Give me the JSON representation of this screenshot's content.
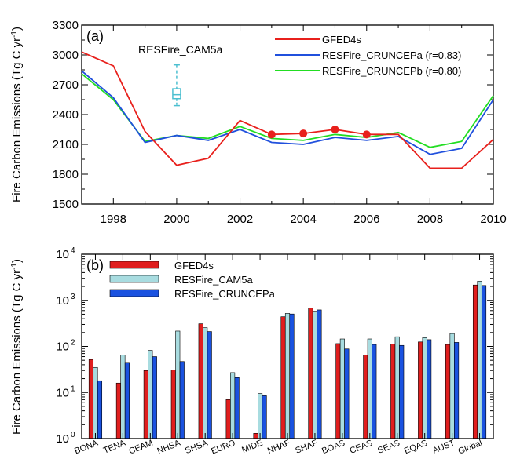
{
  "figure": {
    "panel_a": {
      "label": "(a)",
      "ylabel": "Fire Carbon Emissions (Tg C yr",
      "ylabel_sup": "-1",
      "ylabel_close": ")",
      "box_label": "RESFire_CAM5a"
    },
    "panel_b": {
      "label": "(b)",
      "ylabel": "Fire Carbon Emissions (Tg C yr",
      "ylabel_sup": "-1",
      "ylabel_close": ")"
    }
  },
  "chart_data": [
    {
      "type": "line",
      "xlim": [
        1997,
        2010
      ],
      "ylim": [
        1500,
        3300
      ],
      "x_ticks": [
        1998,
        2000,
        2002,
        2004,
        2006,
        2008,
        2010
      ],
      "y_ticks": [
        1500,
        1800,
        2100,
        2400,
        2700,
        3000,
        3300
      ],
      "grid": false,
      "legend_position": "top-right",
      "colors": {
        "GFED4s": "#e8201c",
        "RESFire_CRUNCEPa": "#2050dd",
        "RESFire_CRUNCEPb": "#22dd22",
        "box": "#4cbfd0"
      },
      "series": [
        {
          "name": "GFED4s",
          "x": [
            1997,
            1998,
            1999,
            2000,
            2001,
            2002,
            2003,
            2004,
            2005,
            2006,
            2007,
            2008,
            2009,
            2010
          ],
          "values": [
            3030,
            2890,
            2230,
            1890,
            1960,
            2340,
            2200,
            2210,
            2250,
            2200,
            2200,
            1860,
            1860,
            2150
          ],
          "markers_at": [
            2003,
            2004,
            2005,
            2006
          ]
        },
        {
          "name": "RESFire_CRUNCEPa (r=0.83)",
          "x": [
            1997,
            1998,
            1999,
            2000,
            2001,
            2002,
            2003,
            2004,
            2005,
            2006,
            2007,
            2008,
            2009,
            2010
          ],
          "values": [
            2840,
            2570,
            2120,
            2190,
            2140,
            2250,
            2120,
            2100,
            2170,
            2140,
            2180,
            2000,
            2060,
            2550
          ]
        },
        {
          "name": "RESFire_CRUNCEPb (r=0.80)",
          "x": [
            1997,
            1998,
            1999,
            2000,
            2001,
            2002,
            2003,
            2004,
            2005,
            2006,
            2007,
            2008,
            2009,
            2010
          ],
          "values": [
            2810,
            2550,
            2130,
            2190,
            2160,
            2280,
            2160,
            2140,
            2200,
            2170,
            2220,
            2070,
            2130,
            2590
          ]
        }
      ],
      "boxplot": {
        "name": "RESFire_CAM5a",
        "x": 2000,
        "min": 2490,
        "q1": 2560,
        "median": 2600,
        "q3": 2660,
        "max": 2900
      }
    },
    {
      "type": "bar",
      "yscale": "log",
      "ylim": [
        1,
        10000
      ],
      "y_ticks": [
        "10^0",
        "10^1",
        "10^2",
        "10^3",
        "10^4"
      ],
      "grid": false,
      "legend_position": "top-left",
      "categories": [
        "BONA",
        "TENA",
        "CEAM",
        "NHSA",
        "SHSA",
        "EURO",
        "MIDE",
        "NHAF",
        "SHAF",
        "BOAS",
        "CEAS",
        "SEAS",
        "EQAS",
        "AUST",
        "Global"
      ],
      "series": [
        {
          "name": "GFED4s",
          "color": "#e01e1e",
          "values": [
            52,
            16,
            30,
            31,
            310,
            7,
            1.3,
            440,
            680,
            115,
            65,
            112,
            125,
            110,
            2150
          ]
        },
        {
          "name": "RESFire_CAM5a",
          "color": "#a8dce0",
          "values": [
            35,
            65,
            82,
            215,
            255,
            27,
            9.5,
            520,
            580,
            145,
            145,
            162,
            155,
            190,
            2600
          ]
        },
        {
          "name": "RESFire_CRUNCEPa",
          "color": "#1a52e0",
          "values": [
            18,
            45,
            60,
            47,
            210,
            21,
            8.5,
            505,
            620,
            88,
            110,
            105,
            140,
            122,
            2100
          ]
        }
      ]
    }
  ]
}
